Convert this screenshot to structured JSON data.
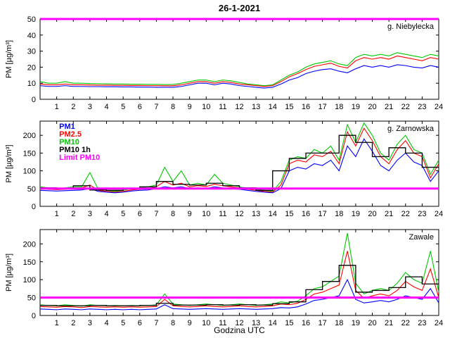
{
  "chart_data": {
    "type": "line",
    "title": "26-1-2021",
    "xlabel": "Godzina UTC",
    "ylabel": "PM [µg/m³]",
    "xlim": [
      0,
      24
    ],
    "xticks": [
      1,
      2,
      3,
      4,
      5,
      6,
      7,
      8,
      9,
      10,
      11,
      12,
      13,
      14,
      15,
      16,
      17,
      18,
      19,
      20,
      21,
      22,
      23,
      24
    ],
    "x": [
      0,
      0.5,
      1,
      1.5,
      2,
      2.5,
      3,
      3.5,
      4,
      4.5,
      5,
      5.5,
      6,
      6.5,
      7,
      7.5,
      8,
      8.5,
      9,
      9.5,
      10,
      10.5,
      11,
      11.5,
      12,
      12.5,
      13,
      13.5,
      14,
      14.5,
      15,
      15.5,
      16,
      16.5,
      17,
      17.5,
      18,
      18.5,
      19,
      19.5,
      20,
      20.5,
      21,
      21.5,
      22,
      22.5,
      23,
      23.5,
      24
    ],
    "limit_value": 50,
    "legend": [
      "PM1",
      "PM2.5",
      "PM10",
      "PM10 1h",
      "Limit PM10"
    ],
    "legend_position": "middle-panel-top-left",
    "colors": {
      "PM1": "#0000ff",
      "PM2.5": "#ff0000",
      "PM10": "#00c800",
      "PM10 1h": "#000000",
      "Limit PM10": "#ff00ff"
    },
    "panels": [
      {
        "station": "g. Niebylecka",
        "ylim": [
          0,
          50
        ],
        "yticks": [
          0,
          10,
          20,
          30,
          40,
          50
        ],
        "series": [
          {
            "name": "PM1",
            "values": [
              8.5,
              8,
              8,
              8.5,
              8,
              8,
              7.9,
              7.9,
              7.8,
              7.8,
              7.7,
              7.7,
              7.6,
              7.6,
              7.5,
              7.5,
              7.5,
              8,
              9,
              10,
              10,
              9,
              10,
              9.5,
              8.5,
              8,
              7.5,
              7,
              7.5,
              9.5,
              12,
              13.5,
              16,
              17.5,
              18.5,
              19,
              17.5,
              16.5,
              19,
              21,
              20,
              21,
              20,
              21.5,
              21,
              20,
              19.5,
              21,
              20
            ]
          },
          {
            "name": "PM2.5",
            "values": [
              9.5,
              9,
              9,
              9.5,
              9,
              9,
              8.9,
              8.8,
              8.8,
              8.7,
              8.7,
              8.6,
              8.6,
              8.5,
              8.5,
              8.4,
              8.4,
              9,
              10,
              11,
              11,
              10,
              11,
              10.5,
              9.5,
              9,
              8.5,
              8,
              8.5,
              11,
              14,
              16,
              18.5,
              20.5,
              21.5,
              22.5,
              20.5,
              19.5,
              24,
              26,
              25,
              26,
              25,
              27,
              26,
              25,
              24,
              26,
              25
            ]
          },
          {
            "name": "PM10",
            "values": [
              11,
              10,
              10,
              11,
              10,
              10,
              9.8,
              9.7,
              9.6,
              9.5,
              9.5,
              9.4,
              9.4,
              9.3,
              9.3,
              9.2,
              9.2,
              10,
              11,
              12,
              12,
              11,
              12,
              11.5,
              10.5,
              9.5,
              9,
              8.5,
              9,
              12,
              15,
              17,
              20,
              22,
              23,
              24,
              22,
              21,
              26,
              28,
              27,
              28,
              27,
              29,
              28,
              27,
              26,
              28,
              27
            ]
          }
        ],
        "pm10_1h": null
      },
      {
        "station": "g. Zarnowska",
        "ylim": [
          0,
          240
        ],
        "yticks": [
          0,
          50,
          100,
          150,
          200
        ],
        "series": [
          {
            "name": "PM1",
            "values": [
              45,
              44,
              43,
              44,
              45,
              46,
              50,
              42,
              40,
              38,
              40,
              43,
              45,
              46,
              50,
              55,
              52,
              55,
              50,
              52,
              50,
              55,
              52,
              50,
              48,
              45,
              42,
              40,
              38,
              50,
              100,
              110,
              105,
              120,
              115,
              130,
              100,
              170,
              140,
              190,
              155,
              115,
              100,
              130,
              150,
              125,
              115,
              70,
              100
            ]
          },
          {
            "name": "PM2.5",
            "values": [
              50,
              48,
              47,
              48,
              50,
              52,
              60,
              45,
              42,
              40,
              42,
              46,
              48,
              50,
              55,
              70,
              60,
              65,
              55,
              58,
              56,
              62,
              58,
              55,
              52,
              48,
              45,
              42,
              40,
              60,
              120,
              130,
              125,
              145,
              140,
              155,
              120,
              210,
              170,
              220,
              185,
              140,
              120,
              160,
              185,
              150,
              140,
              80,
              120
            ]
          },
          {
            "name": "PM10",
            "values": [
              55,
              52,
              50,
              52,
              55,
              55,
              95,
              48,
              45,
              42,
              45,
              50,
              52,
              55,
              60,
              110,
              70,
              100,
              60,
              65,
              60,
              90,
              65,
              60,
              55,
              50,
              48,
              45,
              42,
              70,
              130,
              140,
              135,
              160,
              150,
              170,
              130,
              230,
              180,
              235,
              200,
              150,
              130,
              175,
              200,
              160,
              150,
              90,
              130
            ]
          }
        ],
        "pm10_1h": [
          52,
          50,
          58,
          46,
          45,
          50,
          55,
          70,
          62,
          60,
          65,
          58,
          52,
          45,
          100,
          135,
          150,
          150,
          200,
          180,
          140,
          165,
          150,
          110
        ]
      },
      {
        "station": "Zawale",
        "ylim": [
          0,
          240
        ],
        "yticks": [
          0,
          50,
          100,
          150,
          200
        ],
        "series": [
          {
            "name": "PM1",
            "values": [
              18,
              17,
              16,
              18,
              17,
              16,
              18,
              17,
              16,
              17,
              16,
              17,
              16,
              17,
              18,
              30,
              19,
              18,
              17,
              18,
              19,
              18,
              17,
              18,
              19,
              18,
              17,
              18,
              19,
              22,
              21,
              24,
              32,
              42,
              45,
              50,
              55,
              100,
              45,
              35,
              38,
              42,
              38,
              45,
              55,
              50,
              45,
              75,
              35
            ]
          },
          {
            "name": "PM2.5",
            "values": [
              25,
              24,
              23,
              25,
              24,
              22,
              25,
              24,
              23,
              24,
              23,
              24,
              23,
              24,
              25,
              45,
              27,
              25,
              24,
              25,
              27,
              25,
              24,
              25,
              27,
              25,
              24,
              25,
              27,
              32,
              30,
              34,
              45,
              60,
              65,
              75,
              85,
              180,
              70,
              48,
              55,
              60,
              55,
              70,
              95,
              80,
              70,
              130,
              50
            ]
          },
          {
            "name": "PM10",
            "values": [
              30,
              28,
              27,
              30,
              28,
              26,
              30,
              28,
              27,
              28,
              27,
              28,
              27,
              28,
              30,
              60,
              32,
              30,
              28,
              30,
              32,
              30,
              28,
              30,
              32,
              30,
              28,
              30,
              32,
              38,
              35,
              40,
              55,
              75,
              80,
              95,
              110,
              230,
              90,
              60,
              70,
              75,
              70,
              90,
              120,
              100,
              90,
              180,
              65
            ]
          }
        ],
        "pm10_1h": [
          28,
          27,
          27,
          28,
          27,
          27,
          28,
          34,
          29,
          29,
          30,
          29,
          30,
          29,
          33,
          38,
          72,
          95,
          140,
          65,
          70,
          78,
          108,
          88
        ]
      }
    ]
  }
}
